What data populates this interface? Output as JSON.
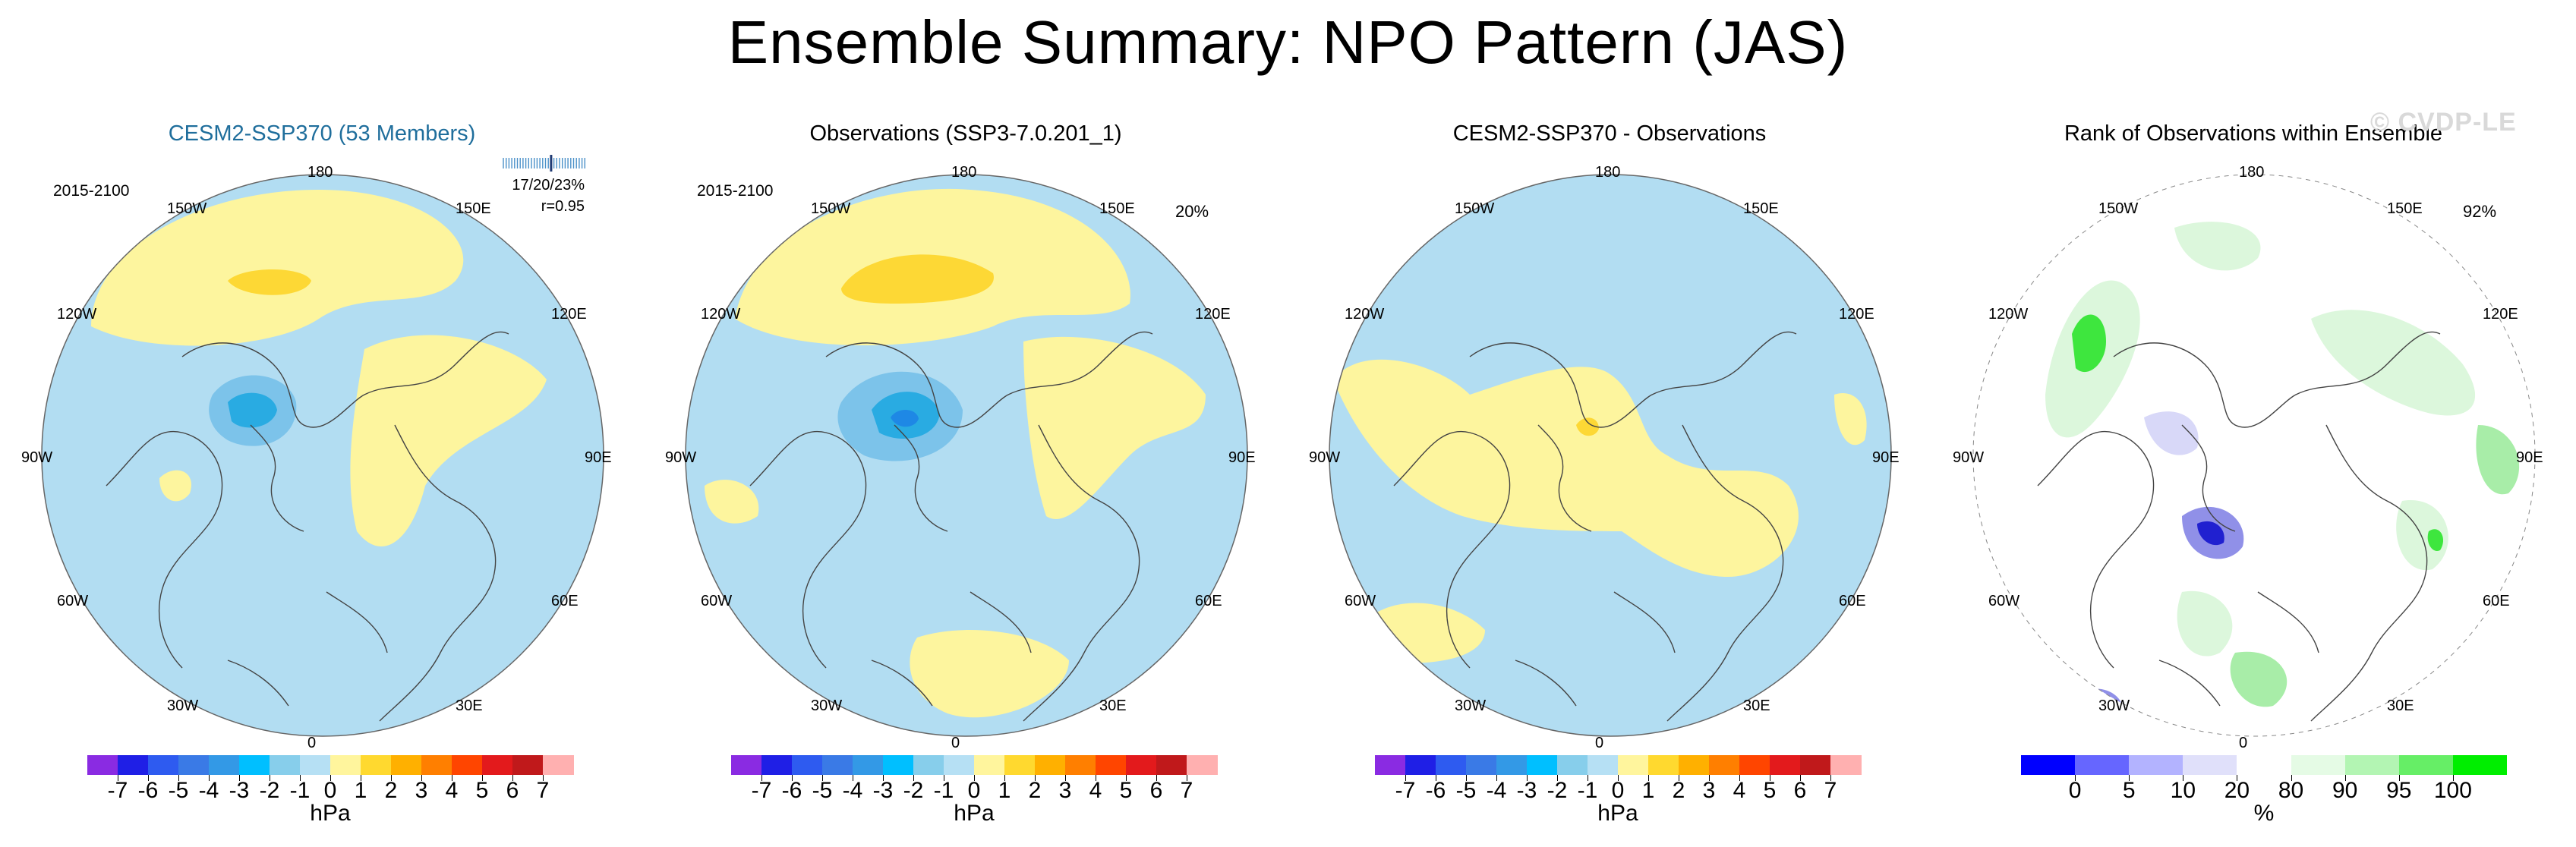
{
  "figure": {
    "title": "Ensemble Summary: NPO Pattern (JAS)",
    "watermark": "© CVDP-LE"
  },
  "lon_labels": [
    "180",
    "150W",
    "150E",
    "120W",
    "120E",
    "90W",
    "90E",
    "60W",
    "60E",
    "30W",
    "30E",
    "0"
  ],
  "panels": [
    {
      "title": "CESM2-SSP370 (53 Members)",
      "period": "2015-2100",
      "stats_line1": "17/20/23%",
      "stats_line2": "r=0.95",
      "colorbar": "diff",
      "field": "model"
    },
    {
      "title": "Observations (SSP3-7.0.201_1)",
      "period": "2015-2100",
      "percent": "20%",
      "colorbar": "diff",
      "field": "obs"
    },
    {
      "title": "CESM2-SSP370 - Observations",
      "colorbar": "diff",
      "field": "bias"
    },
    {
      "title": "Rank of Observations within Ensemble",
      "percent": "92%",
      "colorbar": "rank",
      "field": "rank"
    }
  ],
  "colorbar_hpa": {
    "unit": "hPa",
    "labels": [
      "-7",
      "-6",
      "-5",
      "-4",
      "-3",
      "-2",
      "-1",
      "0",
      "1",
      "2",
      "3",
      "4",
      "5",
      "6",
      "7"
    ],
    "colors": [
      "#8a2be2",
      "#1f1fe6",
      "#2e5bf0",
      "#3a7ae6",
      "#3399e6",
      "#00bfff",
      "#87ceeb",
      "#b6e0f4",
      "#fff59d",
      "#ffd92f",
      "#ffb000",
      "#ff7f00",
      "#ff4500",
      "#e31a1c",
      "#c0191b",
      "#ffb0b0"
    ]
  },
  "colorbar_rank": {
    "unit": "%",
    "labels": [
      "0",
      "5",
      "10",
      "20",
      "80",
      "90",
      "95",
      "100"
    ],
    "colors": [
      "#0000ff",
      "#6666ff",
      "#b3b3ff",
      "#e0e0fa",
      "#ffffff",
      "#e5fbe5",
      "#b3f5b3",
      "#66ee66",
      "#00ee00"
    ]
  },
  "map_colors": {
    "neg1": "#b2ddf2",
    "pos1": "#fdf59e",
    "pos2": "#fdd835",
    "neg2": "#7cc3ea",
    "neg3": "#29abe2",
    "neg4": "#1e88e5",
    "coast": "#444444",
    "rank_green1": "#dcf7dc",
    "rank_green2": "#a8eda8",
    "rank_green3": "#3ee63e",
    "rank_blue1": "#d8d8f8",
    "rank_blue2": "#9090e8",
    "rank_blue3": "#2020d0"
  }
}
